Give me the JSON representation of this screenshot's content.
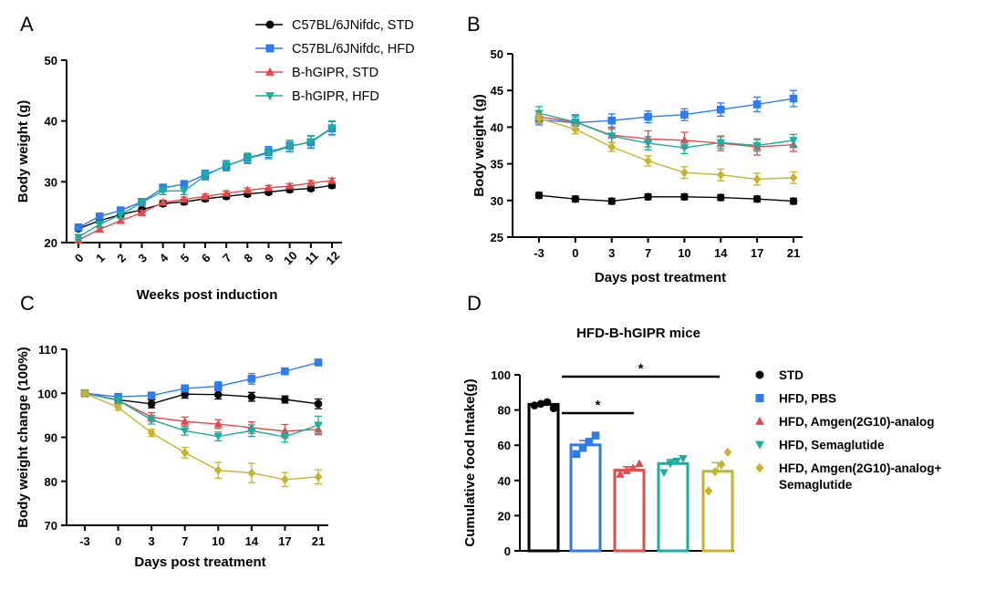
{
  "chart_data": [
    {
      "panel": "A",
      "type": "line",
      "xlabel": "Weeks post induction",
      "ylabel": "Body weight (g)",
      "categories": [
        "0",
        "1",
        "2",
        "3",
        "4",
        "5",
        "6",
        "7",
        "8",
        "9",
        "10",
        "11",
        "12"
      ],
      "ylim": [
        20,
        50
      ],
      "yticks": [
        20,
        30,
        40,
        50
      ],
      "legend": "top-right",
      "series": [
        {
          "name": "C57BL/6JNifdc, STD",
          "color": "#000000",
          "marker": "circle",
          "values": [
            22.3,
            23.6,
            24.6,
            25.4,
            26.4,
            26.7,
            27.2,
            27.6,
            28.0,
            28.3,
            28.7,
            28.9,
            29.4
          ],
          "err": [
            0.4,
            0.4,
            0.4,
            0.4,
            0.4,
            0.4,
            0.4,
            0.4,
            0.4,
            0.4,
            0.4,
            0.4,
            0.4
          ]
        },
        {
          "name": "C57BL/6JNifdc, HFD",
          "color": "#2f7bea",
          "marker": "square",
          "values": [
            22.5,
            24.3,
            25.3,
            26.7,
            29.0,
            29.6,
            31.2,
            32.6,
            33.9,
            34.9,
            35.9,
            36.5,
            38.8
          ],
          "err": [
            0.4,
            0.5,
            0.5,
            0.5,
            0.6,
            0.6,
            0.7,
            0.8,
            0.8,
            0.9,
            0.9,
            1.0,
            1.1
          ]
        },
        {
          "name": "B-hGIPR, STD",
          "color": "#e34a4a",
          "marker": "triangle-up",
          "values": [
            20.4,
            22.2,
            23.6,
            24.9,
            26.6,
            27.1,
            27.6,
            28.1,
            28.6,
            29.0,
            29.3,
            29.8,
            30.2
          ],
          "err": [
            0.4,
            0.4,
            0.4,
            0.4,
            0.4,
            0.4,
            0.4,
            0.4,
            0.4,
            0.4,
            0.4,
            0.4,
            0.4
          ]
        },
        {
          "name": "B-hGIPR, HFD",
          "color": "#1aaea0",
          "marker": "triangle-down",
          "values": [
            20.9,
            23.0,
            24.6,
            26.6,
            28.5,
            28.5,
            31.0,
            32.7,
            33.8,
            34.7,
            35.8,
            36.6,
            38.9
          ],
          "err": [
            0.4,
            0.5,
            0.5,
            0.5,
            0.6,
            0.6,
            0.7,
            0.8,
            0.8,
            0.9,
            0.9,
            1.0,
            1.1
          ]
        }
      ]
    },
    {
      "panel": "B",
      "type": "line",
      "xlabel": "Days post treatment",
      "ylabel": "Body weight (g)",
      "categories": [
        "-3",
        "0",
        "3",
        "7",
        "10",
        "14",
        "17",
        "21"
      ],
      "ylim": [
        25,
        50
      ],
      "yticks": [
        25,
        30,
        35,
        40,
        45,
        50
      ],
      "series": [
        {
          "name": "STD",
          "color": "#000000",
          "marker": "circle",
          "values": [
            30.7,
            30.2,
            29.9,
            30.5,
            30.5,
            30.4,
            30.2,
            29.9
          ],
          "err": [
            0.4,
            0.4,
            0.4,
            0.4,
            0.4,
            0.4,
            0.4,
            0.4
          ]
        },
        {
          "name": "HFD, PBS",
          "color": "#2f7bea",
          "marker": "square",
          "values": [
            41.0,
            40.6,
            40.9,
            41.4,
            41.7,
            42.4,
            43.1,
            43.9
          ],
          "err": [
            0.7,
            0.8,
            0.9,
            0.8,
            0.8,
            0.9,
            1.0,
            1.1
          ]
        },
        {
          "name": "HFD, Amgen(2G10)-analog",
          "color": "#e34a4a",
          "marker": "triangle-up",
          "values": [
            41.4,
            40.7,
            38.9,
            38.4,
            38.2,
            37.8,
            37.3,
            37.6
          ],
          "err": [
            0.8,
            1.0,
            1.0,
            1.1,
            1.1,
            1.0,
            1.1,
            0.9
          ]
        },
        {
          "name": "HFD, Semaglutide",
          "color": "#1aaea0",
          "marker": "triangle-down",
          "values": [
            41.9,
            40.7,
            38.8,
            37.8,
            37.2,
            37.9,
            37.5,
            38.2
          ],
          "err": [
            0.9,
            0.9,
            0.9,
            0.9,
            0.8,
            0.8,
            0.8,
            0.8
          ]
        },
        {
          "name": "HFD, Amgen(2G10)-analog+ Semaglutide",
          "color": "#c8b22e",
          "marker": "diamond",
          "values": [
            41.2,
            39.7,
            37.3,
            35.4,
            33.8,
            33.5,
            32.9,
            33.1
          ],
          "err": [
            0.6,
            0.6,
            0.6,
            0.7,
            0.8,
            0.8,
            0.8,
            0.8
          ]
        }
      ]
    },
    {
      "panel": "C",
      "type": "line",
      "xlabel": "Days post treatment",
      "ylabel": "Body weight change (100%)",
      "categories": [
        "-3",
        "0",
        "3",
        "7",
        "10",
        "14",
        "17",
        "21"
      ],
      "ylim": [
        70,
        110
      ],
      "yticks": [
        70,
        80,
        90,
        100,
        110
      ],
      "series": [
        {
          "name": "STD",
          "color": "#000000",
          "marker": "circle",
          "values": [
            100.0,
            98.5,
            97.6,
            99.8,
            99.7,
            99.2,
            98.6,
            97.6
          ],
          "err": [
            0.5,
            0.8,
            0.9,
            0.9,
            1.0,
            1.0,
            0.8,
            1.1
          ]
        },
        {
          "name": "HFD, PBS",
          "color": "#2f7bea",
          "marker": "square",
          "values": [
            100.0,
            99.2,
            99.5,
            101.1,
            101.6,
            103.3,
            105.0,
            107.0
          ],
          "err": [
            0.5,
            0.6,
            0.7,
            0.8,
            1.0,
            1.2,
            0.7,
            0.6
          ]
        },
        {
          "name": "HFD, Amgen(2G10)-analog",
          "color": "#e34a4a",
          "marker": "triangle-up",
          "values": [
            100.0,
            98.4,
            94.6,
            93.6,
            93.0,
            92.2,
            91.4,
            91.8
          ],
          "err": [
            0.5,
            0.8,
            1.0,
            1.0,
            1.0,
            1.3,
            1.5,
            1.2
          ]
        },
        {
          "name": "HFD, Semaglutide",
          "color": "#1aaea0",
          "marker": "triangle-down",
          "values": [
            100.0,
            98.4,
            94.0,
            91.5,
            90.2,
            91.5,
            90.1,
            92.8
          ],
          "err": [
            0.5,
            0.8,
            1.0,
            1.0,
            1.0,
            1.3,
            1.2,
            2.0
          ]
        },
        {
          "name": "HFD, Amgen(2G10)-analog+ Semaglutide",
          "color": "#c8b22e",
          "marker": "diamond",
          "values": [
            100.0,
            96.8,
            91.0,
            86.5,
            82.5,
            81.9,
            80.4,
            81.0
          ],
          "err": [
            0.5,
            0.6,
            0.8,
            1.2,
            1.8,
            2.2,
            1.6,
            1.6
          ]
        }
      ]
    },
    {
      "panel": "D",
      "type": "bar",
      "title": "HFD-B-hGIPR mice",
      "ylabel": "Cumulative food Intake(g)",
      "ylim": [
        0,
        100
      ],
      "yticks": [
        0,
        20,
        40,
        60,
        80,
        100
      ],
      "categories": [
        "STD",
        "HFD, PBS",
        "HFD, Amgen(2G10)-analog",
        "HFD, Semaglutide",
        "HFD, Amgen(2G10)-analog+ Semaglutide"
      ],
      "legend": "right",
      "legend_lines": [
        [
          "STD"
        ],
        [
          "HFD, PBS"
        ],
        [
          "HFD, Amgen(2G10)-analog"
        ],
        [
          "HFD, Semaglutide"
        ],
        [
          "HFD, Amgen(2G10)-analog+",
          "Semaglutide"
        ]
      ],
      "values": [
        83.2,
        60.2,
        45.8,
        49.6,
        45.2
      ],
      "err": [
        0.5,
        2.4,
        2.0,
        2.3,
        4.9
      ],
      "colors": [
        "#000000",
        "#2f7bea",
        "#e34a4a",
        "#1aaea0",
        "#c8b22e"
      ],
      "markers": [
        "circle",
        "square",
        "triangle-up",
        "triangle-down",
        "diamond"
      ],
      "points": [
        [
          82.6,
          83.5,
          84.5,
          81.0
        ],
        [
          55.0,
          58.5,
          62.0,
          65.5
        ],
        [
          43.5,
          45.5,
          47.0,
          49.5
        ],
        [
          44.5,
          49.5,
          51.0,
          52.5
        ],
        [
          34.0,
          45.0,
          49.0,
          56.0
        ]
      ],
      "significance": [
        {
          "from": 1,
          "to": 4,
          "label": "*"
        },
        {
          "from": 1,
          "to": 2,
          "label": "*"
        }
      ]
    }
  ]
}
